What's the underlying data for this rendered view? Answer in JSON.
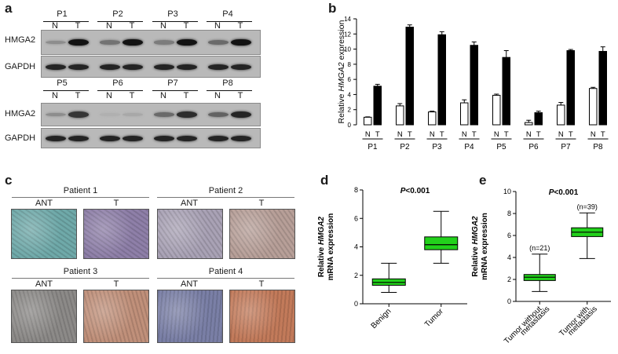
{
  "panels": {
    "a": "a",
    "b": "b",
    "c": "c",
    "d": "d",
    "e": "e"
  },
  "panel_a": {
    "row1_patients": [
      "P1",
      "P2",
      "P3",
      "P4"
    ],
    "row2_patients": [
      "P5",
      "P6",
      "P7",
      "P8"
    ],
    "lane_labels": [
      "N",
      "T"
    ],
    "blot_labels": [
      "HMGA2",
      "GAPDH"
    ],
    "hmga2_intensity_row1": [
      0.25,
      0.95,
      0.4,
      0.95,
      0.35,
      0.95,
      0.45,
      0.95
    ],
    "hmga2_intensity_row2": [
      0.25,
      0.75,
      0.05,
      0.1,
      0.45,
      0.8,
      0.5,
      0.85
    ]
  },
  "panel_c": {
    "groups": [
      {
        "title": "Patient 1",
        "ant": "ANT",
        "t": "T",
        "ant_color": "#6fa9a9",
        "t_color": "#8e7fa8"
      },
      {
        "title": "Patient 2",
        "ant": "ANT",
        "t": "T",
        "ant_color": "#a9a2b5",
        "t_color": "#b79f98"
      },
      {
        "title": "Patient 3",
        "ant": "ANT",
        "t": "T",
        "ant_color": "#8c8a88",
        "t_color": "#c0907a"
      },
      {
        "title": "Patient 4",
        "ant": "ANT",
        "t": "T",
        "ant_color": "#7a7fa6",
        "t_color": "#c27a5a"
      }
    ]
  },
  "chart_data": [
    {
      "panel": "b",
      "type": "bar",
      "categories": [
        "P1",
        "P2",
        "P3",
        "P4",
        "P5",
        "P6",
        "P7",
        "P8"
      ],
      "lane_labels": [
        "N",
        "T"
      ],
      "ylabel_prefix": "Relative ",
      "ylabel_italic": "HMGA2",
      "ylabel_suffix": " expression",
      "ylim": [
        0,
        14
      ],
      "yticks": [
        0,
        2,
        4,
        6,
        8,
        10,
        12,
        14
      ],
      "series": [
        {
          "name": "N",
          "color": "#ffffff",
          "values": [
            1.0,
            2.5,
            1.7,
            2.9,
            3.9,
            0.3,
            2.6,
            4.8
          ],
          "errors": [
            0.05,
            0.3,
            0.1,
            0.4,
            0.15,
            0.3,
            0.35,
            0.15
          ]
        },
        {
          "name": "T",
          "color": "#000000",
          "values": [
            5.1,
            12.9,
            11.9,
            10.5,
            8.9,
            1.6,
            9.8,
            9.7
          ],
          "errors": [
            0.25,
            0.3,
            0.4,
            0.45,
            0.9,
            0.2,
            0.15,
            0.6
          ]
        }
      ]
    },
    {
      "panel": "d",
      "type": "box",
      "annotation": "P<0.001",
      "ylabel_prefix": "Relative ",
      "ylabel_italic": "HMGA2",
      "ylabel_line2": "mRNA expression",
      "ylim": [
        0,
        8
      ],
      "yticks": [
        0,
        2,
        4,
        6,
        8
      ],
      "categories": [
        "Benign",
        "Tumor"
      ],
      "boxes": [
        {
          "min": 0.8,
          "q1": 1.3,
          "median": 1.5,
          "q3": 1.75,
          "max": 2.85
        },
        {
          "min": 2.85,
          "q1": 3.8,
          "median": 4.15,
          "q3": 4.7,
          "max": 6.5
        }
      ],
      "color": "#22d11b"
    },
    {
      "panel": "e",
      "type": "box",
      "annotation": "P<0.001",
      "ylabel_prefix": "Relative ",
      "ylabel_italic": "HMGA2",
      "ylabel_line2": "mRNA expression",
      "ylim": [
        0,
        10
      ],
      "yticks": [
        0,
        2,
        4,
        6,
        8,
        10
      ],
      "categories": [
        "Tumor without metastasis",
        "Tumor with metastasis"
      ],
      "cat_lines": [
        [
          "Tumor without",
          "metastasis"
        ],
        [
          "Tumor with",
          "metastasis"
        ]
      ],
      "n_labels": [
        "(n=21)",
        "(n=39)"
      ],
      "boxes": [
        {
          "min": 0.9,
          "q1": 1.9,
          "median": 2.2,
          "q3": 2.45,
          "max": 4.3
        },
        {
          "min": 3.9,
          "q1": 5.9,
          "median": 6.3,
          "q3": 6.7,
          "max": 8.05
        }
      ],
      "color": "#22d11b"
    }
  ]
}
